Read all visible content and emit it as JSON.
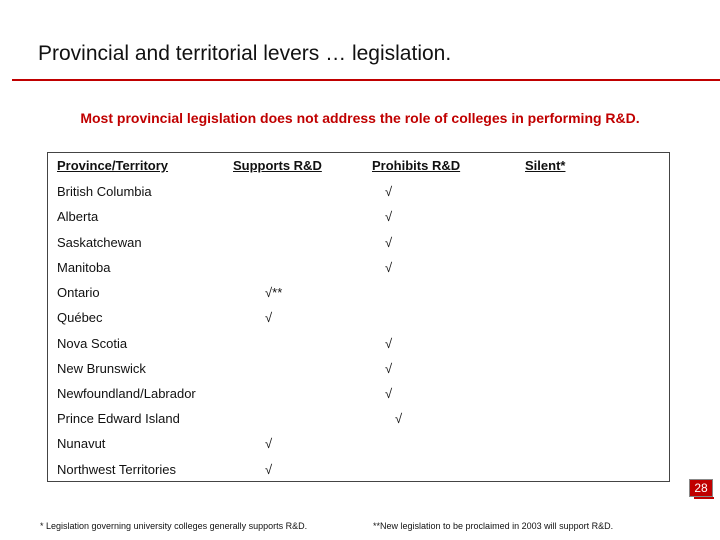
{
  "title": "Provincial and territorial levers … legislation.",
  "subtitle": "Most provincial legislation does not address the role of colleges in performing R&D.",
  "table": {
    "headers": [
      "Province/Territory",
      "Supports R&D",
      "Prohibits R&D",
      "Silent*"
    ],
    "rows": [
      {
        "name": "British Columbia",
        "mark": "√",
        "column": "Prohibits R&D"
      },
      {
        "name": "Alberta",
        "mark": "√",
        "column": "Prohibits R&D"
      },
      {
        "name": "Saskatchewan",
        "mark": "√",
        "column": "Prohibits R&D"
      },
      {
        "name": "Manitoba",
        "mark": "√",
        "column": "Prohibits R&D"
      },
      {
        "name": "Ontario",
        "mark": "√**",
        "column": "Supports R&D"
      },
      {
        "name": "Québec",
        "mark": "√",
        "column": "Supports R&D"
      },
      {
        "name": "Nova Scotia",
        "mark": "√",
        "column": "Prohibits R&D"
      },
      {
        "name": "New Brunswick",
        "mark": "√",
        "column": "Prohibits R&D"
      },
      {
        "name": "Newfoundland/Labrador",
        "mark": "√",
        "column": "Prohibits R&D"
      },
      {
        "name": "Prince Edward Island",
        "mark": "√",
        "column": "Prohibits R&D"
      },
      {
        "name": "Nunavut",
        "mark": "√",
        "column": "Supports R&D"
      },
      {
        "name": "Northwest Territories",
        "mark": "√",
        "column": "Supports R&D"
      }
    ]
  },
  "footnotes": {
    "left": "* Legislation governing university colleges generally supports R&D.",
    "right": "**New legislation to be proclaimed in 2003 will support R&D."
  },
  "page_number": "28",
  "colors": {
    "accent": "#c00000"
  }
}
